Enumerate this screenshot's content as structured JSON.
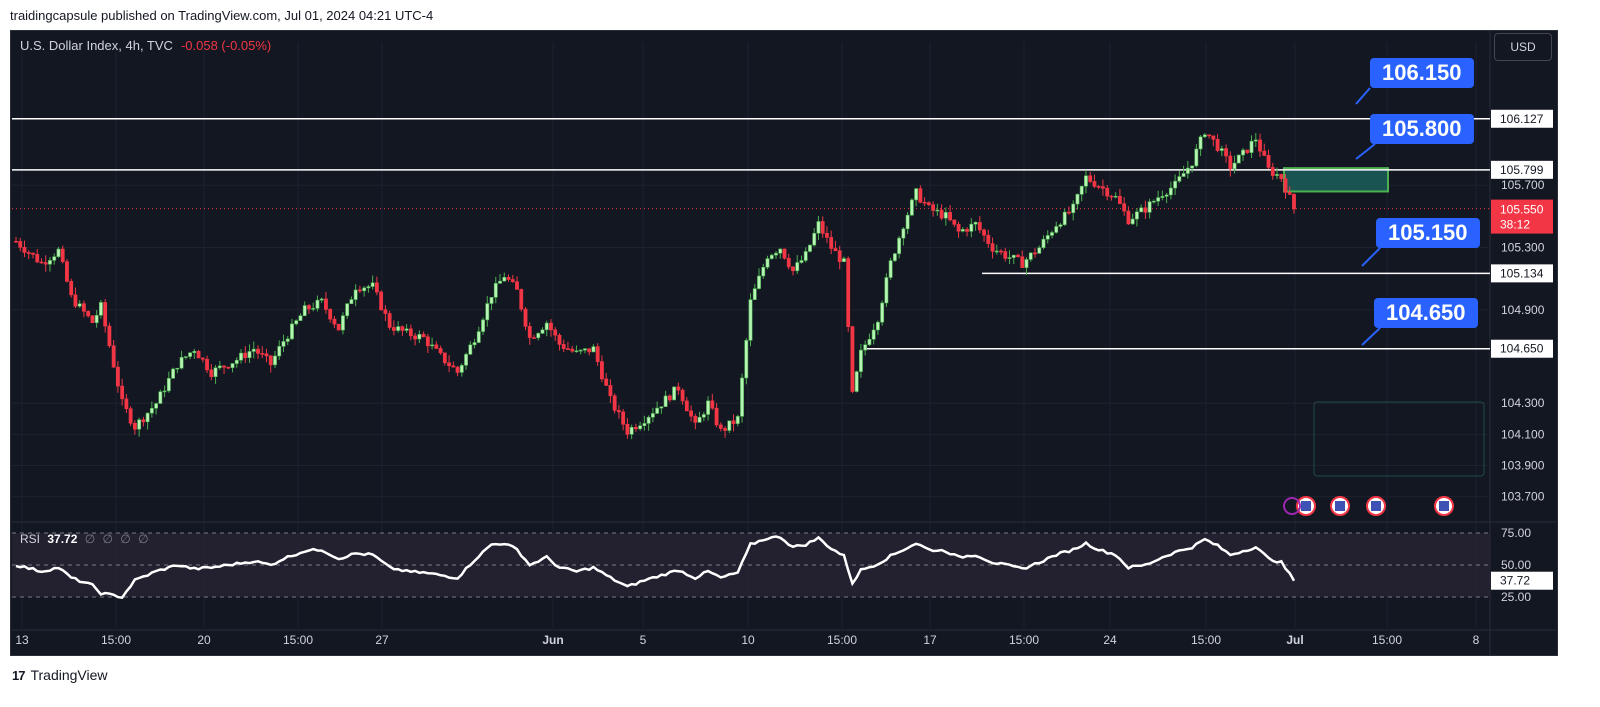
{
  "header": {
    "published": "traidingcapsule published on TradingView.com, Jul 01, 2024 04:21 UTC-4"
  },
  "legend": {
    "symbol": "U.S. Dollar Index, 4h, TVC",
    "change": "-0.058 (-0.05%)"
  },
  "currency_label": "USD",
  "rsi": {
    "label": "RSI",
    "value": "37.72",
    "placeholders": "∅ ∅ ∅ ∅",
    "axis_ticks": [
      "75.00",
      "50.00",
      "25.00"
    ],
    "current_label": "37.72"
  },
  "footer": {
    "brand": "TradingView",
    "logo_text": "17"
  },
  "colors": {
    "up": "#089981",
    "down": "#f23645",
    "bg": "#131722",
    "callout": "#2962ff",
    "zone_fill": "#1b5e5a",
    "zone_border": "#22ab94"
  },
  "chart_data": {
    "type": "candlestick",
    "title": "U.S. Dollar Index, 4h, TVC",
    "price_axis_ticks": [
      "105.700",
      "105.300",
      "104.900",
      "104.300",
      "104.100",
      "103.900",
      "103.700"
    ],
    "price_range": [
      103.55,
      106.62
    ],
    "current_price": {
      "price": "105.550",
      "countdown": "38:12"
    },
    "time_axis_labels": [
      "13",
      "15:00",
      "20",
      "15:00",
      "27",
      "Jun",
      "5",
      "10",
      "15:00",
      "17",
      "15:00",
      "24",
      "15:00",
      "Jul",
      "15:00",
      "8"
    ],
    "horizontal_levels": [
      {
        "price": 106.127,
        "label": "106.127",
        "callout": "106.150"
      },
      {
        "price": 105.799,
        "label": "105.799",
        "callout": "105.800"
      },
      {
        "price": 105.134,
        "label": "105.134",
        "callout": "105.150"
      },
      {
        "price": 104.65,
        "label": "104.650",
        "callout": "104.650"
      }
    ],
    "zone": {
      "top": 105.81,
      "bottom": 105.66
    },
    "path_anchors": [
      [
        0,
        105.34
      ],
      [
        6,
        105.2
      ],
      [
        10,
        105.28
      ],
      [
        13,
        104.98
      ],
      [
        18,
        104.82
      ],
      [
        20,
        104.92
      ],
      [
        25,
        104.3
      ],
      [
        28,
        104.15
      ],
      [
        33,
        104.3
      ],
      [
        38,
        104.55
      ],
      [
        42,
        104.65
      ],
      [
        46,
        104.5
      ],
      [
        52,
        104.58
      ],
      [
        56,
        104.65
      ],
      [
        60,
        104.55
      ],
      [
        63,
        104.7
      ],
      [
        68,
        104.9
      ],
      [
        72,
        104.95
      ],
      [
        76,
        104.78
      ],
      [
        80,
        105.05
      ],
      [
        84,
        105.05
      ],
      [
        88,
        104.8
      ],
      [
        92,
        104.75
      ],
      [
        96,
        104.72
      ],
      [
        100,
        104.6
      ],
      [
        104,
        104.5
      ],
      [
        108,
        104.72
      ],
      [
        112,
        105.0
      ],
      [
        115,
        105.12
      ],
      [
        118,
        105.02
      ],
      [
        121,
        104.72
      ],
      [
        125,
        104.82
      ],
      [
        128,
        104.68
      ],
      [
        132,
        104.62
      ],
      [
        136,
        104.65
      ],
      [
        140,
        104.32
      ],
      [
        144,
        104.12
      ],
      [
        148,
        104.2
      ],
      [
        152,
        104.3
      ],
      [
        156,
        104.4
      ],
      [
        160,
        104.15
      ],
      [
        163,
        104.3
      ],
      [
        166,
        104.12
      ],
      [
        170,
        104.2
      ],
      [
        173,
        104.95
      ],
      [
        177,
        105.25
      ],
      [
        180,
        105.3
      ],
      [
        183,
        105.15
      ],
      [
        186,
        105.25
      ],
      [
        189,
        105.45
      ],
      [
        192,
        105.3
      ],
      [
        195,
        105.2
      ],
      [
        197,
        104.35
      ],
      [
        199,
        104.62
      ],
      [
        203,
        104.85
      ],
      [
        206,
        105.2
      ],
      [
        209,
        105.45
      ],
      [
        212,
        105.65
      ],
      [
        215,
        105.55
      ],
      [
        219,
        105.5
      ],
      [
        222,
        105.4
      ],
      [
        226,
        105.45
      ],
      [
        230,
        105.3
      ],
      [
        233,
        105.25
      ],
      [
        237,
        105.2
      ],
      [
        241,
        105.3
      ],
      [
        245,
        105.45
      ],
      [
        249,
        105.55
      ],
      [
        252,
        105.75
      ],
      [
        255,
        105.7
      ],
      [
        259,
        105.62
      ],
      [
        262,
        105.48
      ],
      [
        266,
        105.55
      ],
      [
        270,
        105.65
      ],
      [
        273,
        105.7
      ],
      [
        277,
        105.85
      ],
      [
        280,
        106.05
      ],
      [
        283,
        105.95
      ],
      [
        286,
        105.82
      ],
      [
        289,
        105.9
      ],
      [
        292,
        106.0
      ],
      [
        295,
        105.8
      ],
      [
        298,
        105.75
      ],
      [
        301,
        105.55
      ]
    ],
    "rsi_anchors": [
      [
        0,
        50
      ],
      [
        6,
        45
      ],
      [
        10,
        48
      ],
      [
        13,
        40
      ],
      [
        18,
        34
      ],
      [
        20,
        28
      ],
      [
        25,
        25
      ],
      [
        28,
        38
      ],
      [
        33,
        45
      ],
      [
        38,
        50
      ],
      [
        42,
        47
      ],
      [
        46,
        48
      ],
      [
        52,
        51
      ],
      [
        56,
        53
      ],
      [
        60,
        50
      ],
      [
        63,
        55
      ],
      [
        68,
        61
      ],
      [
        72,
        62
      ],
      [
        76,
        55
      ],
      [
        80,
        59
      ],
      [
        84,
        58
      ],
      [
        88,
        48
      ],
      [
        92,
        45
      ],
      [
        96,
        44
      ],
      [
        100,
        42
      ],
      [
        104,
        40
      ],
      [
        108,
        54
      ],
      [
        112,
        66
      ],
      [
        115,
        67
      ],
      [
        118,
        62
      ],
      [
        121,
        50
      ],
      [
        125,
        56
      ],
      [
        128,
        48
      ],
      [
        132,
        45
      ],
      [
        136,
        48
      ],
      [
        140,
        40
      ],
      [
        144,
        33
      ],
      [
        148,
        38
      ],
      [
        152,
        42
      ],
      [
        156,
        46
      ],
      [
        160,
        40
      ],
      [
        163,
        45
      ],
      [
        166,
        40
      ],
      [
        170,
        44
      ],
      [
        173,
        66
      ],
      [
        177,
        71
      ],
      [
        180,
        72
      ],
      [
        183,
        64
      ],
      [
        186,
        66
      ],
      [
        189,
        71
      ],
      [
        192,
        63
      ],
      [
        195,
        57
      ],
      [
        197,
        36
      ],
      [
        199,
        46
      ],
      [
        203,
        51
      ],
      [
        206,
        57
      ],
      [
        209,
        62
      ],
      [
        212,
        67
      ],
      [
        215,
        62
      ],
      [
        219,
        61
      ],
      [
        222,
        56
      ],
      [
        226,
        58
      ],
      [
        230,
        52
      ],
      [
        233,
        50
      ],
      [
        237,
        47
      ],
      [
        241,
        52
      ],
      [
        245,
        58
      ],
      [
        249,
        62
      ],
      [
        252,
        67
      ],
      [
        255,
        62
      ],
      [
        259,
        58
      ],
      [
        262,
        48
      ],
      [
        266,
        50
      ],
      [
        270,
        56
      ],
      [
        273,
        60
      ],
      [
        277,
        64
      ],
      [
        280,
        70
      ],
      [
        283,
        65
      ],
      [
        286,
        58
      ],
      [
        289,
        61
      ],
      [
        292,
        64
      ],
      [
        295,
        55
      ],
      [
        298,
        52
      ],
      [
        301,
        38
      ]
    ]
  }
}
